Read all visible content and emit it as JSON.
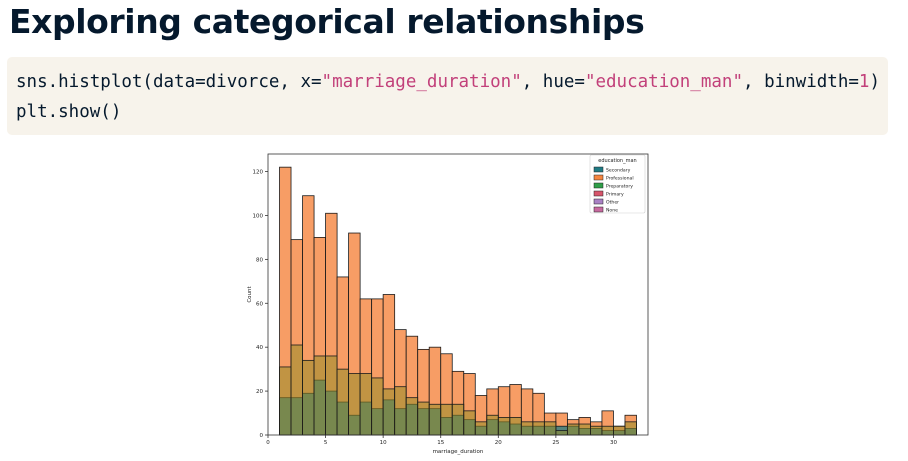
{
  "slide": {
    "title": "Exploring categorical relationships"
  },
  "code": {
    "line1": [
      {
        "t": "sns.histplot(data=divorce, x=",
        "c": "plain"
      },
      {
        "t": "\"marriage_duration\"",
        "c": "str"
      },
      {
        "t": ", hue=",
        "c": "plain"
      },
      {
        "t": "\"education_man\"",
        "c": "str"
      },
      {
        "t": ", binwidth=",
        "c": "plain"
      },
      {
        "t": "1",
        "c": "num"
      },
      {
        "t": ")",
        "c": "plain"
      }
    ],
    "line2": "plt.show()"
  },
  "chart_data": {
    "type": "bar",
    "subtype": "overlapping-histogram",
    "xlabel": "marriage_duration",
    "ylabel": "Count",
    "xlim": [
      0,
      33
    ],
    "ylim": [
      0,
      128
    ],
    "xticks": [
      0,
      5,
      10,
      15,
      20,
      25,
      30
    ],
    "yticks": [
      0,
      20,
      40,
      60,
      80,
      100,
      120
    ],
    "bin_start": 1,
    "binwidth": 1,
    "legend": {
      "title": "education_man",
      "placement": "top-right",
      "entries": [
        "Secondary",
        "Professional",
        "Preparatory",
        "Primary",
        "Other",
        "None"
      ]
    },
    "colors": {
      "Secondary": "#1f7b84",
      "Professional": "#f5853f",
      "Preparatory": "#2e9e48",
      "Primary": "#d6556b",
      "Other": "#a982c5",
      "None": "#c76aa0"
    },
    "series": [
      {
        "name": "Professional",
        "values": [
          122,
          89,
          109,
          90,
          101,
          72,
          92,
          62,
          62,
          64,
          48,
          45,
          39,
          40,
          37,
          29,
          28,
          18,
          21,
          22,
          23,
          21,
          19,
          10,
          10,
          7,
          8,
          6,
          11,
          4,
          9
        ]
      },
      {
        "name": "Secondary",
        "values": [
          17,
          17,
          19,
          25,
          20,
          15,
          9,
          15,
          12,
          16,
          12,
          14,
          12,
          12,
          8,
          9,
          7,
          4,
          7,
          6,
          5,
          4,
          4,
          4,
          4,
          4,
          3,
          3,
          2,
          2,
          3
        ]
      },
      {
        "name": "Primary",
        "values": [
          31,
          41,
          34,
          36,
          36,
          30,
          28,
          28,
          26,
          21,
          22,
          17,
          15,
          14,
          14,
          14,
          11,
          6,
          9,
          8,
          8,
          6,
          6,
          6,
          2,
          5,
          5,
          4,
          4,
          4,
          6
        ]
      }
    ]
  }
}
